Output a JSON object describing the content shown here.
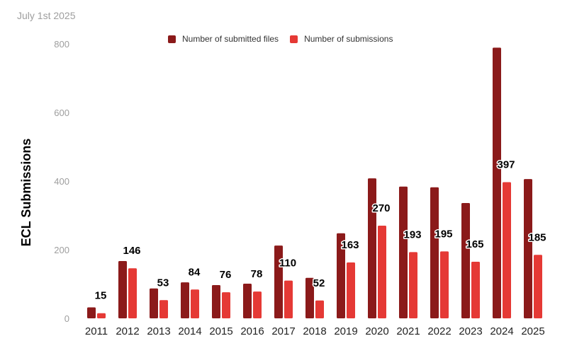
{
  "chart_data": {
    "type": "bar",
    "subtitle": "July 1st 2025",
    "ylabel": "ECL Submissions",
    "xlabel": "",
    "ylim": [
      0,
      800
    ],
    "yticks": [
      0,
      200,
      400,
      600,
      800
    ],
    "grid": false,
    "legend_position": "top-center",
    "categories": [
      "2011",
      "2012",
      "2013",
      "2014",
      "2015",
      "2016",
      "2017",
      "2018",
      "2019",
      "2020",
      "2021",
      "2022",
      "2023",
      "2024",
      "2025"
    ],
    "series": [
      {
        "name": "Number of submitted files",
        "color": "#8b1a1a",
        "values": [
          32,
          167,
          87,
          105,
          97,
          101,
          212,
          118,
          248,
          408,
          384,
          382,
          336,
          789,
          406
        ]
      },
      {
        "name": "Number of submissions",
        "color": "#e53935",
        "values": [
          15,
          146,
          53,
          84,
          76,
          78,
          110,
          52,
          163,
          270,
          193,
          195,
          165,
          397,
          185
        ]
      }
    ],
    "data_labels": [
      "15",
      "146",
      "53",
      "84",
      "76",
      "78",
      "110",
      "52",
      "163",
      "270",
      "193",
      "195",
      "165",
      "397",
      "185"
    ]
  }
}
